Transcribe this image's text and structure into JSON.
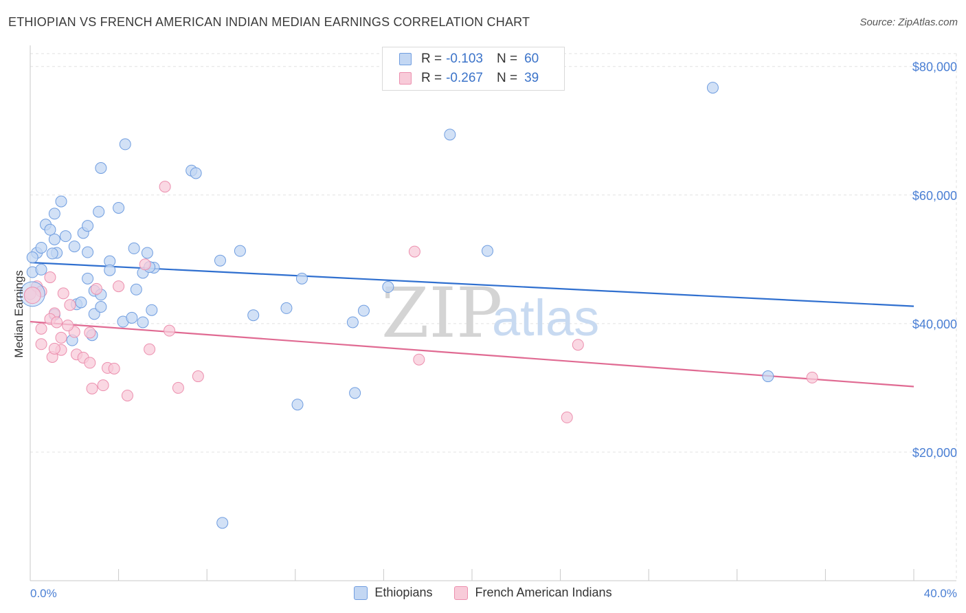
{
  "title": "ETHIOPIAN VS FRENCH AMERICAN INDIAN MEDIAN EARNINGS CORRELATION CHART",
  "source": "Source: ZipAtlas.com",
  "watermark": {
    "zip": "ZIP",
    "atlas": "atlas"
  },
  "legend": {
    "r_label": "R =",
    "n_label": "N =",
    "series": [
      {
        "r": "-0.103",
        "n": "60"
      },
      {
        "r": "-0.267",
        "n": "39"
      }
    ]
  },
  "chart_data": {
    "type": "scatter",
    "title": "ETHIOPIAN VS FRENCH AMERICAN INDIAN MEDIAN EARNINGS CORRELATION CHART",
    "xlabel": "",
    "ylabel": "Median Earnings",
    "xlim": [
      0,
      40
    ],
    "ylim": [
      0,
      82000
    ],
    "x_tick_labels": [
      "0.0%",
      "40.0%"
    ],
    "y_ticks": [
      20000,
      40000,
      60000,
      80000
    ],
    "y_tick_labels": [
      "$20,000",
      "$40,000",
      "$60,000",
      "$80,000"
    ],
    "grid": true,
    "series": [
      {
        "name": "Ethiopians",
        "color": "#6f9de0",
        "fill": "#c3d7f3",
        "trend": {
          "x": [
            0,
            40
          ],
          "y": [
            49500,
            42700
          ]
        },
        "points": [
          [
            0.1,
            48000
          ],
          [
            0.3,
            51000
          ],
          [
            0.5,
            48400
          ],
          [
            0.5,
            51800
          ],
          [
            0.1,
            50300
          ],
          [
            1.2,
            51000
          ],
          [
            1.1,
            53100
          ],
          [
            1.4,
            59000
          ],
          [
            1.1,
            57100
          ],
          [
            0.7,
            55400
          ],
          [
            1.6,
            53600
          ],
          [
            1.0,
            50900
          ],
          [
            0.9,
            54600
          ],
          [
            2.4,
            54100
          ],
          [
            2.6,
            55200
          ],
          [
            2.0,
            52000
          ],
          [
            2.6,
            51100
          ],
          [
            3.2,
            64200
          ],
          [
            3.1,
            57400
          ],
          [
            4.0,
            58000
          ],
          [
            4.3,
            67900
          ],
          [
            3.6,
            49700
          ],
          [
            2.9,
            45100
          ],
          [
            2.1,
            43000
          ],
          [
            2.6,
            47000
          ],
          [
            1.9,
            37400
          ],
          [
            1.1,
            41400
          ],
          [
            2.3,
            43300
          ],
          [
            2.9,
            41500
          ],
          [
            3.2,
            42600
          ],
          [
            2.8,
            38200
          ],
          [
            3.2,
            44500
          ],
          [
            3.6,
            48300
          ],
          [
            4.2,
            40300
          ],
          [
            4.7,
            51700
          ],
          [
            5.3,
            51000
          ],
          [
            5.6,
            48700
          ],
          [
            7.3,
            63800
          ],
          [
            7.5,
            63400
          ],
          [
            5.1,
            47900
          ],
          [
            4.6,
            40900
          ],
          [
            5.4,
            48800
          ],
          [
            4.8,
            45300
          ],
          [
            8.6,
            49800
          ],
          [
            9.5,
            51300
          ],
          [
            11.6,
            42400
          ],
          [
            12.3,
            47000
          ],
          [
            5.5,
            42100
          ],
          [
            15.1,
            42000
          ],
          [
            14.6,
            40200
          ],
          [
            14.7,
            29200
          ],
          [
            19.0,
            69400
          ],
          [
            12.1,
            27400
          ],
          [
            8.7,
            9000
          ],
          [
            5.1,
            40200
          ],
          [
            16.2,
            45700
          ],
          [
            20.7,
            51300
          ],
          [
            30.9,
            76700
          ],
          [
            33.4,
            31800
          ],
          [
            10.1,
            41300
          ]
        ]
      },
      {
        "name": "French American Indians",
        "color": "#ec8fae",
        "fill": "#f8cbd9",
        "trend": {
          "x": [
            0,
            40
          ],
          "y": [
            40300,
            30200
          ]
        },
        "points": [
          [
            0.0,
            44600
          ],
          [
            0.3,
            45800
          ],
          [
            0.5,
            45000
          ],
          [
            0.5,
            36800
          ],
          [
            0.5,
            39200
          ],
          [
            1.1,
            41600
          ],
          [
            0.9,
            40700
          ],
          [
            1.4,
            35900
          ],
          [
            1.2,
            40200
          ],
          [
            1.0,
            34800
          ],
          [
            1.4,
            37800
          ],
          [
            1.8,
            42900
          ],
          [
            1.5,
            44700
          ],
          [
            2.0,
            38700
          ],
          [
            2.1,
            35200
          ],
          [
            2.4,
            34700
          ],
          [
            2.7,
            38600
          ],
          [
            2.7,
            33900
          ],
          [
            2.8,
            29900
          ],
          [
            3.3,
            30400
          ],
          [
            3.5,
            33100
          ],
          [
            4.0,
            45800
          ],
          [
            3.8,
            33000
          ],
          [
            4.4,
            28800
          ],
          [
            5.2,
            49200
          ],
          [
            5.4,
            36000
          ],
          [
            6.1,
            61300
          ],
          [
            6.3,
            38900
          ],
          [
            6.7,
            30000
          ],
          [
            7.6,
            31800
          ],
          [
            17.4,
            51200
          ],
          [
            17.6,
            34400
          ],
          [
            24.3,
            25400
          ],
          [
            24.8,
            36700
          ],
          [
            35.4,
            31600
          ],
          [
            0.9,
            47200
          ],
          [
            1.7,
            39700
          ],
          [
            3.0,
            45400
          ],
          [
            1.1,
            36100
          ]
        ]
      }
    ]
  }
}
